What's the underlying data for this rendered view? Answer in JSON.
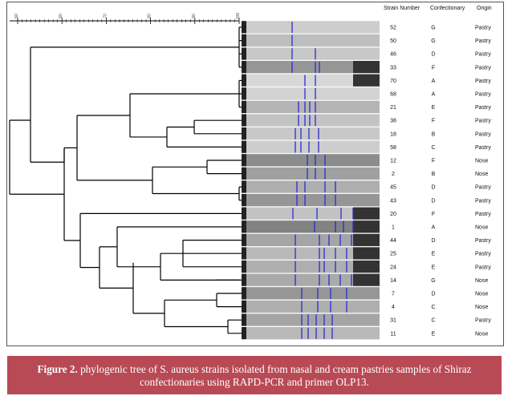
{
  "headers": {
    "strain": "Strain Number",
    "confectionary": "Confectionary",
    "origin": "Origin"
  },
  "scale_ticks": [
    "50",
    "60",
    "70",
    "80",
    "90",
    "100"
  ],
  "rows": [
    {
      "strain": "52",
      "conf": "G",
      "origin": "Pastry"
    },
    {
      "strain": "50",
      "conf": "G",
      "origin": "Pastry"
    },
    {
      "strain": "46",
      "conf": "D",
      "origin": "Pastry"
    },
    {
      "strain": "33",
      "conf": "F",
      "origin": "Pastry"
    },
    {
      "strain": "70",
      "conf": "A",
      "origin": "Pastry"
    },
    {
      "strain": "68",
      "conf": "A",
      "origin": "Pastry"
    },
    {
      "strain": "21",
      "conf": "E",
      "origin": "Pastry"
    },
    {
      "strain": "38",
      "conf": "F",
      "origin": "Pastry"
    },
    {
      "strain": "18",
      "conf": "B",
      "origin": "Pastry"
    },
    {
      "strain": "58",
      "conf": "C",
      "origin": "Pastry"
    },
    {
      "strain": "12",
      "conf": "F",
      "origin": "Nose"
    },
    {
      "strain": "2",
      "conf": "B",
      "origin": "Nose"
    },
    {
      "strain": "45",
      "conf": "D",
      "origin": "Pastry"
    },
    {
      "strain": "43",
      "conf": "D",
      "origin": "Pastry"
    },
    {
      "strain": "20",
      "conf": "F",
      "origin": "Pastry"
    },
    {
      "strain": "1",
      "conf": "A",
      "origin": "Nose"
    },
    {
      "strain": "44",
      "conf": "D",
      "origin": "Pastry"
    },
    {
      "strain": "25",
      "conf": "E",
      "origin": "Pastry"
    },
    {
      "strain": "24",
      "conf": "E",
      "origin": "Pastry"
    },
    {
      "strain": "14",
      "conf": "G",
      "origin": "Nose"
    },
    {
      "strain": "7",
      "conf": "D",
      "origin": "Nose"
    },
    {
      "strain": "4",
      "conf": "C",
      "origin": "Nose"
    },
    {
      "strain": "31",
      "conf": "C",
      "origin": "Pastry"
    },
    {
      "strain": "11",
      "conf": "E",
      "origin": "Nose"
    }
  ],
  "caption": {
    "bold": "Figure 2.",
    "text": " phylogenic tree of S. aureus strains isolated from nasal and cream pastries samples of Shiraz confectionaries using RAPD-PCR and primer OLP13."
  },
  "colors": {
    "caption_bg": "#b84a55",
    "band": "#2a2ad8"
  }
}
